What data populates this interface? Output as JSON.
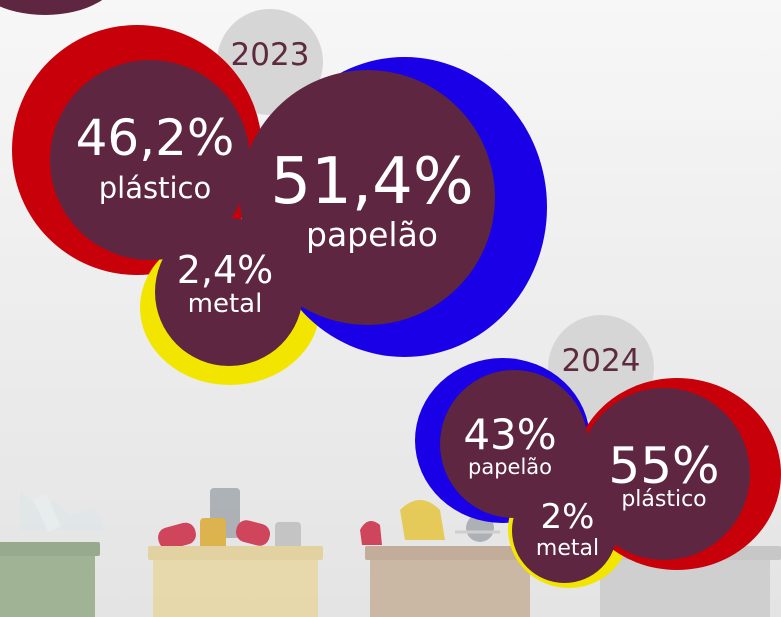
{
  "colors": {
    "maroon": "#5e2640",
    "red": "#c8000a",
    "blue": "#1a00e6",
    "yellow": "#f2e600",
    "year_bubble": "#d6d6d6",
    "year_text": "#5e2a3e",
    "bin_green": "#8aa37a",
    "bin_yellow": "#e8d59a",
    "bin_brown": "#c2a98f",
    "bin_gray": "#c8c8c8"
  },
  "years": [
    {
      "year": "2023",
      "items": [
        {
          "percent": "46,2%",
          "material": "plástico",
          "ring_color": "red"
        },
        {
          "percent": "51,4%",
          "material": "papelão",
          "ring_color": "blue"
        },
        {
          "percent": "2,4%",
          "material": "metal",
          "ring_color": "yellow"
        }
      ]
    },
    {
      "year": "2024",
      "items": [
        {
          "percent": "43%",
          "material": "papelão",
          "ring_color": "blue"
        },
        {
          "percent": "55%",
          "material": "plástico",
          "ring_color": "red"
        },
        {
          "percent": "2%",
          "material": "metal",
          "ring_color": "yellow"
        }
      ]
    }
  ],
  "bins": [
    {
      "icon": "glass-bin-icon",
      "color": "green"
    },
    {
      "icon": "metal-bin-icon",
      "color": "yellow"
    },
    {
      "icon": "organic-bin-icon",
      "color": "brown"
    },
    {
      "icon": "waste-bin-icon",
      "color": "gray"
    }
  ]
}
